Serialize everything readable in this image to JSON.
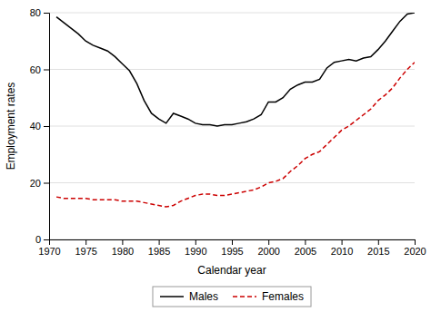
{
  "chart_data": {
    "type": "line",
    "x": [
      1971,
      1972,
      1973,
      1974,
      1975,
      1976,
      1977,
      1978,
      1979,
      1980,
      1981,
      1982,
      1983,
      1984,
      1985,
      1986,
      1987,
      1988,
      1989,
      1990,
      1991,
      1992,
      1993,
      1994,
      1995,
      1996,
      1997,
      1998,
      1999,
      2000,
      2001,
      2002,
      2003,
      2004,
      2005,
      2006,
      2007,
      2008,
      2009,
      2010,
      2011,
      2012,
      2013,
      2014,
      2015,
      2016,
      2017,
      2018,
      2019,
      2020
    ],
    "series": [
      {
        "name": "Males",
        "color": "#000000",
        "line_style": "solid",
        "values": [
          78.5,
          76.5,
          74.5,
          72.5,
          70.0,
          68.5,
          67.5,
          66.5,
          64.5,
          62.0,
          59.5,
          55.0,
          49.0,
          44.5,
          42.5,
          41.0,
          44.5,
          43.5,
          42.5,
          41.0,
          40.5,
          40.5,
          40.0,
          40.5,
          40.5,
          41.0,
          41.5,
          42.5,
          44.0,
          48.5,
          48.5,
          50.0,
          53.0,
          54.5,
          55.5,
          55.5,
          56.5,
          60.5,
          62.5,
          63.0,
          63.5,
          63.0,
          64.0,
          64.5,
          67.0,
          70.0,
          73.5,
          77.0,
          79.5,
          80.0
        ]
      },
      {
        "name": "Females",
        "color": "#cc0000",
        "line_style": "dashed",
        "values": [
          15.0,
          14.5,
          14.5,
          14.5,
          14.5,
          14.0,
          14.0,
          14.0,
          14.0,
          13.5,
          13.5,
          13.5,
          13.0,
          12.5,
          12.0,
          11.5,
          12.0,
          13.5,
          14.5,
          15.5,
          16.0,
          16.0,
          15.5,
          15.5,
          16.0,
          16.5,
          17.0,
          17.5,
          18.5,
          20.0,
          20.5,
          21.5,
          24.0,
          26.0,
          28.5,
          30.0,
          31.0,
          33.5,
          36.0,
          38.5,
          40.0,
          42.0,
          44.0,
          46.0,
          49.0,
          51.0,
          53.5,
          57.0,
          60.0,
          62.5
        ]
      }
    ],
    "xlabel": "Calendar year",
    "ylabel": "Employment rates",
    "xlim": [
      1970,
      2020
    ],
    "ylim": [
      0,
      80
    ],
    "xticks": [
      1970,
      1975,
      1980,
      1985,
      1990,
      1995,
      2000,
      2005,
      2010,
      2015,
      2020
    ],
    "yticks": [
      0,
      20,
      40,
      60,
      80
    ],
    "grid": true,
    "legend": "bottom"
  }
}
